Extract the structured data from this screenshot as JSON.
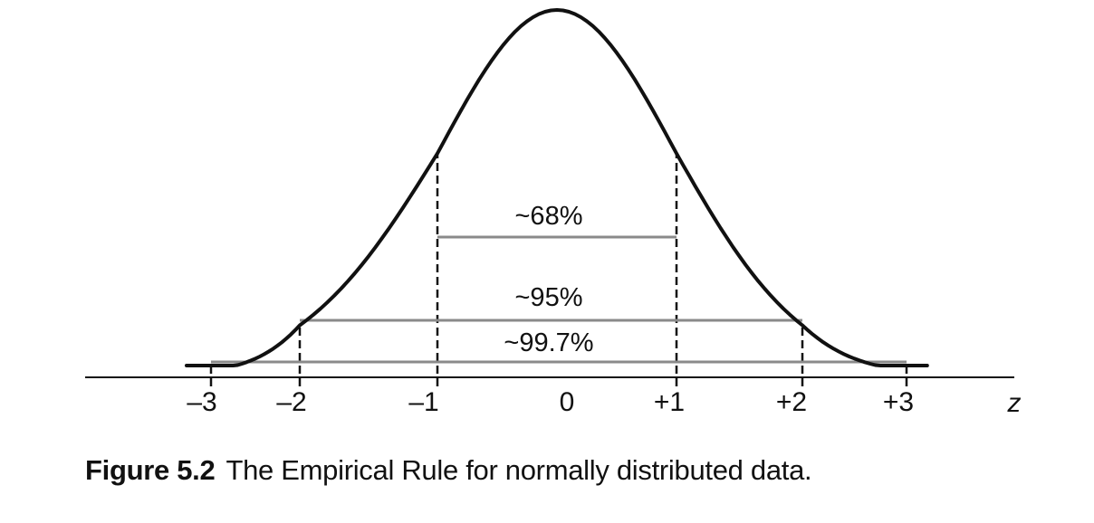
{
  "chart_data": {
    "type": "line",
    "curve": "normal density",
    "x_label": "z",
    "x_ticks": [
      {
        "value": -3,
        "label": "–3"
      },
      {
        "value": -2,
        "label": "–2"
      },
      {
        "value": -1,
        "label": "–1"
      },
      {
        "value": 0,
        "label": "0"
      },
      {
        "value": 1,
        "label": "+1"
      },
      {
        "value": 2,
        "label": "+2"
      },
      {
        "value": 3,
        "label": "+3"
      }
    ],
    "intervals": [
      {
        "from": -1,
        "to": 1,
        "label": "~68%"
      },
      {
        "from": -2,
        "to": 2,
        "label": "~95%"
      },
      {
        "from": -3,
        "to": 3,
        "label": "~99.7%"
      }
    ],
    "colors": {
      "curve": "#111111",
      "guides": "#111111",
      "interval_lines": "#8a8a8a"
    }
  },
  "caption": {
    "label": "Figure 5.2",
    "text": "The Empirical Rule for normally distributed data."
  }
}
